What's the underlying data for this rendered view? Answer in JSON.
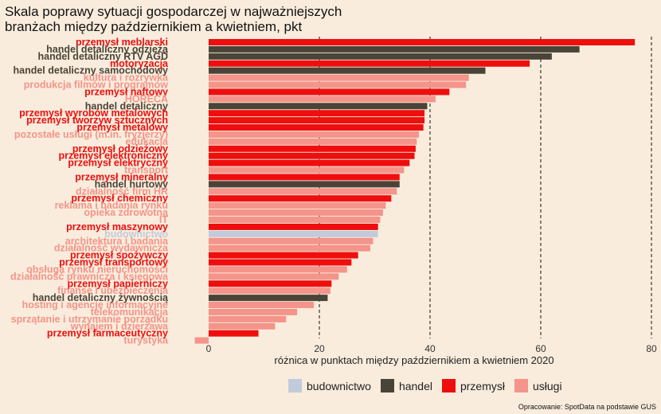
{
  "title": {
    "line1": "Skala poprawy sytuacji gospodarczej w najważniejszych",
    "line2": "branżach między październikiem a kwietniem, pkt"
  },
  "source": "Opracowanie: SpotData na podstawie GUS",
  "colors": {
    "budownictwo": "#c2cbdc",
    "handel": "#4a4438",
    "przemysl": "#ee0e0e",
    "uslugi": "#f4948a",
    "background": "#f9ecdc"
  },
  "legend": [
    {
      "key": "budownictwo",
      "label": "budownictwo"
    },
    {
      "key": "handel",
      "label": "handel"
    },
    {
      "key": "przemysl",
      "label": "przemysł"
    },
    {
      "key": "uslugi",
      "label": "usługi"
    }
  ],
  "chart_data": {
    "type": "bar",
    "orientation": "horizontal",
    "title": "Skala poprawy sytuacji gospodarczej w najważniejszych branżach między październikiem a kwietniem, pkt",
    "xlabel": "różnica w punktach między październikiem a kwietniem 2020",
    "ylabel": "",
    "xlim": [
      -3,
      80
    ],
    "xticks": [
      0,
      20,
      40,
      60,
      80
    ],
    "grid": "dashed vertical at 20, 40, 60, 80",
    "legend_position": "bottom",
    "categories": [
      "przemysł meblarski",
      "handel detaliczny odzieżą",
      "handel detaliczny RTV AGD",
      "motoryzacja",
      "handel detaliczny samochodowy",
      "kultura i rozrywka",
      "produkcja filmów i programów",
      "przemysł naftowy",
      "HORECA",
      "handel detaliczny",
      "przemysł wyrobów metalowych",
      "przemysł tworzyw sztucznych",
      "przemysł metalowy",
      "pozostałe usługi (m.in. fryzjerzy)",
      "edukacja",
      "przemysł odzieżowy",
      "przemysł elektroniczny",
      "przemysł elektryczny",
      "transport",
      "przemysł mineralny",
      "handel hurtowy",
      "działalność firm HR",
      "przemysł chemiczny",
      "reklama i badania rynku",
      "opieka zdrowotna",
      "IT",
      "przemysł maszynowy",
      "budownictwo",
      "architektura i badania",
      "działalność wydawnicza",
      "przemysł spożywczy",
      "przemysł transportowy",
      "obsługa rynku nieruchomości",
      "działalność prawnicza i księgowa",
      "przemysł papierniczy",
      "finanse i ubezpieczenia",
      "handel detaliczny żywnością",
      "hosting i agencje informacyjne",
      "telekomunikacja",
      "sprzątanie i utrzymanie porządku",
      "wynajem i dzierżawa",
      "przemysł farmaceutyczny",
      "turystyka"
    ],
    "sectors": [
      "przemysl",
      "handel",
      "handel",
      "przemysl",
      "handel",
      "uslugi",
      "uslugi",
      "przemysl",
      "uslugi",
      "handel",
      "przemysl",
      "przemysl",
      "przemysl",
      "uslugi",
      "uslugi",
      "przemysl",
      "przemysl",
      "przemysl",
      "uslugi",
      "przemysl",
      "handel",
      "uslugi",
      "przemysl",
      "uslugi",
      "uslugi",
      "uslugi",
      "przemysl",
      "budownictwo",
      "uslugi",
      "uslugi",
      "przemysl",
      "przemysl",
      "uslugi",
      "uslugi",
      "przemysl",
      "uslugi",
      "handel",
      "uslugi",
      "uslugi",
      "uslugi",
      "uslugi",
      "przemysl",
      "uslugi"
    ],
    "values": [
      77.0,
      67.0,
      62.0,
      58.0,
      50.0,
      47.0,
      46.5,
      43.5,
      41.0,
      39.5,
      39.0,
      39.0,
      38.8,
      38.0,
      37.6,
      37.4,
      37.2,
      36.3,
      35.3,
      34.5,
      34.5,
      34.0,
      33.0,
      32.0,
      31.5,
      31.0,
      30.6,
      30.6,
      29.7,
      29.2,
      27.0,
      25.8,
      25.0,
      23.5,
      22.2,
      22.0,
      21.5,
      19.0,
      16.0,
      14.0,
      12.0,
      9.0,
      -2.5
    ]
  }
}
